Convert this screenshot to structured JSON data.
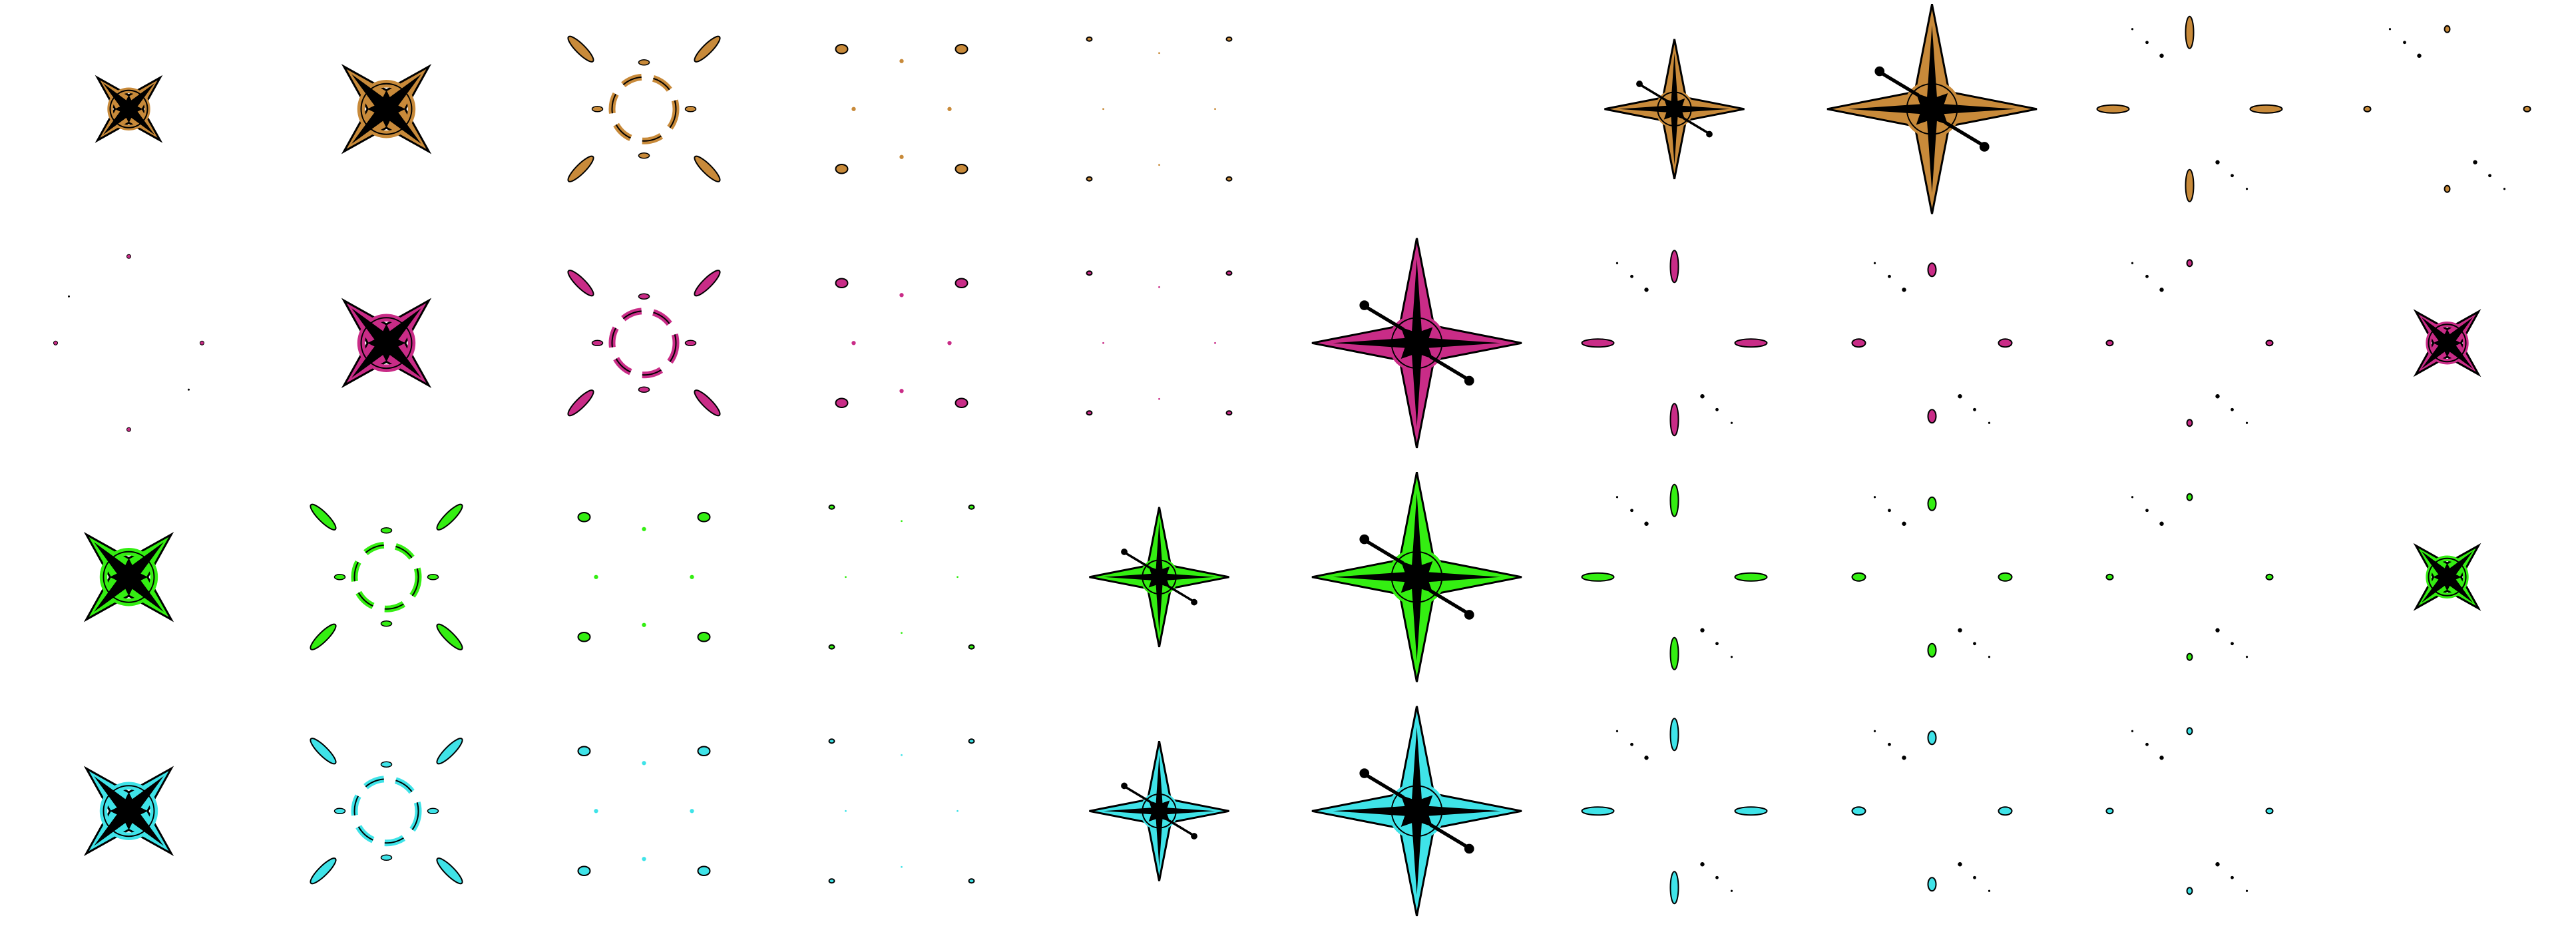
{
  "sheet": {
    "background": "#ffffff",
    "outline_color": "#000000",
    "rows": [
      {
        "name": "orange",
        "color": "#c88a3a",
        "frames": [
          "star-x-large",
          "star-x-larger",
          "burst-ring",
          "dots-spread",
          "dots-faint",
          "empty",
          "star-plus-medium",
          "star-plus-large",
          "plus-spread",
          "plus-faint"
        ]
      },
      {
        "name": "magenta",
        "color": "#c92c87",
        "frames": [
          "faint-specks",
          "star-x-larger",
          "burst-ring",
          "dots-spread",
          "dots-faint",
          "star-plus-large",
          "plus-spread",
          "plus-faint-mid",
          "plus-faint",
          "star-x-large"
        ]
      },
      {
        "name": "green",
        "color": "#34ee12",
        "frames": [
          "star-x-larger",
          "burst-ring",
          "dots-spread",
          "dots-faint",
          "star-plus-medium",
          "star-plus-large",
          "plus-spread",
          "plus-faint-mid",
          "plus-faint",
          "star-x-large"
        ]
      },
      {
        "name": "cyan",
        "color": "#3fe3e8",
        "frames": [
          "star-x-larger",
          "burst-ring",
          "dots-spread",
          "dots-faint",
          "star-plus-medium",
          "star-plus-large",
          "plus-spread",
          "plus-faint-mid",
          "plus-faint",
          "empty"
        ]
      }
    ]
  }
}
